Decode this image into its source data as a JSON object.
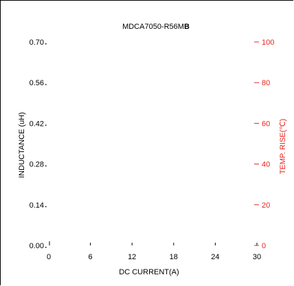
{
  "chart_data": {
    "type": "line",
    "title_prefix": "MDCA7050-R56M",
    "title_suffix": "B",
    "xlabel": "DC CURRENT(A)",
    "ylabel_left": "INDUCTANCE (uH)",
    "ylabel_right": "TEMP. RISE(℃)",
    "x_ticks": [
      "0",
      "6",
      "12",
      "18",
      "24",
      "30"
    ],
    "xlim": [
      0,
      30
    ],
    "y_left_ticks": [
      "0.00",
      "0.14",
      "0.28",
      "0.42",
      "0.56",
      "0.70"
    ],
    "ylim_left": [
      0,
      0.7
    ],
    "y_right_ticks": [
      "0",
      "20",
      "40",
      "60",
      "80",
      "100"
    ],
    "ylim_right": [
      0,
      100
    ],
    "grid": false,
    "series": []
  },
  "colors": {
    "axis": "#000000",
    "right_axis": "#e8231e"
  }
}
